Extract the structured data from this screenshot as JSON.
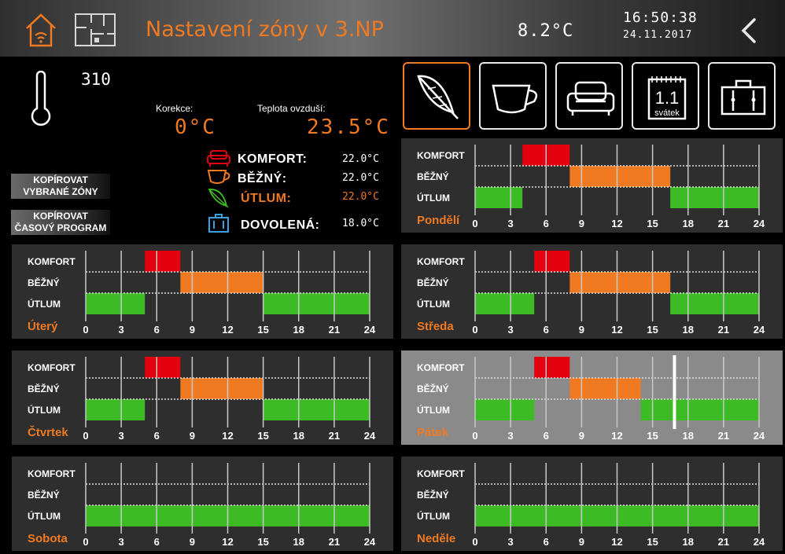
{
  "header": {
    "title": "Nastavení zóny v 3.NP",
    "outdoor_temp": "8.2°C",
    "time": "16:50:38",
    "date": "24.11.2017",
    "icons": [
      "home-wifi-icon",
      "floorplan-icon",
      "back-chevron-icon"
    ]
  },
  "zone": {
    "id": "310",
    "korekce_label": "Korekce:",
    "korekce_value": "0°C",
    "teplota_label": "Teplota ovzduší:",
    "teplota_value": "23.5°C"
  },
  "copy_buttons": [
    {
      "line1": "KOPÍROVAT",
      "line2": "VYBRANÉ ZÓNY"
    },
    {
      "line1": "KOPÍROVAT",
      "line2": "ČASOVÝ PROGRAM"
    }
  ],
  "mode_buttons": [
    {
      "icon": "feather-icon",
      "active": true
    },
    {
      "icon": "cup-icon",
      "active": false
    },
    {
      "icon": "sofa-icon",
      "active": false
    },
    {
      "icon": "calendar-icon",
      "active": false,
      "label_top": "1.1",
      "label_bottom": "svátek"
    },
    {
      "icon": "suitcase-icon",
      "active": false
    }
  ],
  "modes": [
    {
      "name": "KOMFORT:",
      "temp": "22.0°C",
      "icon": "sofa-icon",
      "highlight": false
    },
    {
      "name": "BĚŽNÝ:",
      "temp": "22.0°C",
      "icon": "cup-icon",
      "highlight": false
    },
    {
      "name": "ÚTLUM:",
      "temp": "22.0°C",
      "icon": "feather-icon",
      "highlight": true
    },
    {
      "name": "DOVOLENÁ:",
      "temp": "18.0°C",
      "icon": "suitcase-icon",
      "highlight": false
    }
  ],
  "colors": {
    "komfort": "#e3000f",
    "bezny": "#f07a22",
    "utlum": "#3dbb24",
    "accent": "#f07a22"
  },
  "schedule_rows": [
    "KOMFORT",
    "BĚŽNÝ",
    "ÚTLUM"
  ],
  "hour_ticks": [
    "0",
    "3",
    "6",
    "9",
    "12",
    "15",
    "18",
    "21",
    "24"
  ],
  "chart_data": {
    "type": "schedule",
    "x_unit": "hour",
    "xlim": [
      0,
      24
    ],
    "days": [
      {
        "name": "Pondělí",
        "current": false,
        "segments": [
          {
            "level": "utlum",
            "from": 0,
            "to": 4
          },
          {
            "level": "komfort",
            "from": 4,
            "to": 8
          },
          {
            "level": "bezny",
            "from": 8,
            "to": 16.5
          },
          {
            "level": "utlum",
            "from": 16.5,
            "to": 24
          }
        ]
      },
      {
        "name": "Úterý",
        "current": false,
        "segments": [
          {
            "level": "utlum",
            "from": 0,
            "to": 5
          },
          {
            "level": "komfort",
            "from": 5,
            "to": 8
          },
          {
            "level": "bezny",
            "from": 8,
            "to": 15
          },
          {
            "level": "utlum",
            "from": 15,
            "to": 24
          }
        ]
      },
      {
        "name": "Středa",
        "current": false,
        "segments": [
          {
            "level": "utlum",
            "from": 0,
            "to": 5
          },
          {
            "level": "komfort",
            "from": 5,
            "to": 8
          },
          {
            "level": "bezny",
            "from": 8,
            "to": 16.5
          },
          {
            "level": "utlum",
            "from": 16.5,
            "to": 24
          }
        ]
      },
      {
        "name": "Čtvrtek",
        "current": false,
        "segments": [
          {
            "level": "utlum",
            "from": 0,
            "to": 5
          },
          {
            "level": "komfort",
            "from": 5,
            "to": 8
          },
          {
            "level": "bezny",
            "from": 8,
            "to": 15
          },
          {
            "level": "utlum",
            "from": 15,
            "to": 24
          }
        ]
      },
      {
        "name": "Pátek",
        "current": true,
        "now_marker": 16.85,
        "segments": [
          {
            "level": "utlum",
            "from": 0,
            "to": 5
          },
          {
            "level": "komfort",
            "from": 5,
            "to": 8
          },
          {
            "level": "bezny",
            "from": 8,
            "to": 14
          },
          {
            "level": "utlum",
            "from": 14,
            "to": 24
          }
        ]
      },
      {
        "name": "Sobota",
        "current": false,
        "segments": [
          {
            "level": "utlum",
            "from": 0,
            "to": 24
          }
        ]
      },
      {
        "name": "Neděle",
        "current": false,
        "segments": [
          {
            "level": "utlum",
            "from": 0,
            "to": 24
          }
        ]
      }
    ]
  }
}
